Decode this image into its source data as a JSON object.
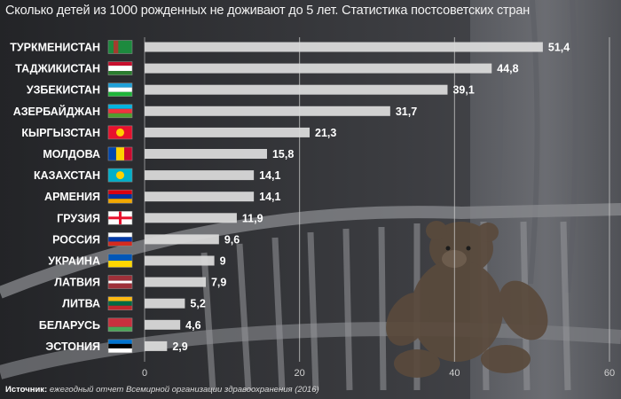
{
  "title": "Сколько детей из 1000 рожденных не доживают до 5 лет. Статистика постсоветских стран",
  "source_label": "Источник:",
  "source_text": "ежегодный отчет Всемирной организации здравоохранения (2016)",
  "colors": {
    "bar": "#d9d9d9",
    "text": "#ffffff",
    "grid": "#cfcfcf",
    "axis_tick": "#d0d0d0"
  },
  "chart_data": {
    "type": "bar",
    "orientation": "horizontal",
    "title": "Сколько детей из 1000 рожденных не доживают до 5 лет. Статистика постсоветских стран",
    "xlim": [
      0,
      60
    ],
    "xticks": [
      0,
      20,
      40,
      60
    ],
    "grid": true,
    "categories": [
      "ТУРКМЕНИСТАН",
      "ТАДЖИКИСТАН",
      "УЗБЕКИСТАН",
      "АЗЕРБАЙДЖАН",
      "КЫРГЫЗСТАН",
      "МОЛДОВА",
      "КАЗАХСТАН",
      "АРМЕНИЯ",
      "ГРУЗИЯ",
      "РОССИЯ",
      "УКРАИНА",
      "ЛАТВИЯ",
      "ЛИТВА",
      "БЕЛАРУСЬ",
      "ЭСТОНИЯ"
    ],
    "values": [
      51.4,
      44.8,
      39.1,
      31.7,
      21.3,
      15.8,
      14.1,
      14.1,
      11.9,
      9.6,
      9,
      7.9,
      5.2,
      4.6,
      2.9
    ],
    "value_labels": [
      "51,4",
      "44,8",
      "39,1",
      "31,7",
      "21,3",
      "15,8",
      "14,1",
      "14,1",
      "11,9",
      "9,6",
      "9",
      "7,9",
      "5,2",
      "4,6",
      "2,9"
    ],
    "flag_icons": [
      "flag-turkmenistan-icon",
      "flag-tajikistan-icon",
      "flag-uzbekistan-icon",
      "flag-azerbaijan-icon",
      "flag-kyrgyzstan-icon",
      "flag-moldova-icon",
      "flag-kazakhstan-icon",
      "flag-armenia-icon",
      "flag-georgia-icon",
      "flag-russia-icon",
      "flag-ukraine-icon",
      "flag-latvia-icon",
      "flag-lithuania-icon",
      "flag-belarus-icon",
      "flag-estonia-icon"
    ]
  }
}
